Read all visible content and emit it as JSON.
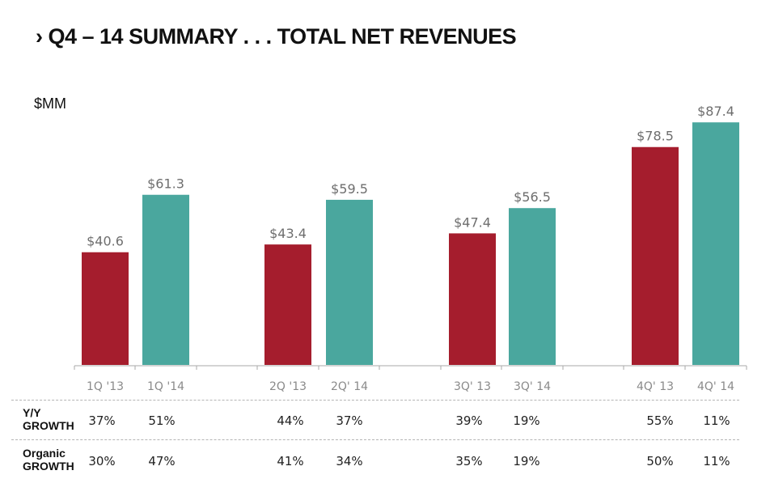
{
  "title": "› Q4 – 14 SUMMARY . . . TOTAL NET REVENUES",
  "chart_data": {
    "type": "bar",
    "title": "Q4 – 14 SUMMARY . . . TOTAL NET REVENUES",
    "ylabel": "$MM",
    "xlabel": "",
    "ylim": [
      0,
      90
    ],
    "grid": false,
    "categories": [
      "1Q '13",
      "1Q '14",
      "2Q '13",
      "2Q' 14",
      "3Q' 13",
      "3Q' 14",
      "4Q' 13",
      "4Q' 14"
    ],
    "values": [
      40.6,
      61.3,
      43.4,
      59.5,
      47.4,
      56.5,
      78.5,
      87.4
    ],
    "data_labels": [
      "$40.6",
      "$61.3",
      "$43.4",
      "$59.5",
      "$47.4",
      "$56.5",
      "$78.5",
      "$87.4"
    ],
    "series_colors": {
      "2013": "#a51d2d",
      "2014": "#4aa79e"
    },
    "groups": [
      "1Q",
      "2Q",
      "3Q",
      "4Q"
    ]
  },
  "growth_table": {
    "rows": [
      {
        "label_line1": "Y/Y",
        "label_line2": "GROWTH",
        "values": [
          "37%",
          "51%",
          "44%",
          "37%",
          "39%",
          "19%",
          "55%",
          "11%"
        ]
      },
      {
        "label_line1": "Organic",
        "label_line2": "GROWTH",
        "values": [
          "30%",
          "47%",
          "41%",
          "34%",
          "35%",
          "19%",
          "50%",
          "11%"
        ]
      }
    ]
  }
}
